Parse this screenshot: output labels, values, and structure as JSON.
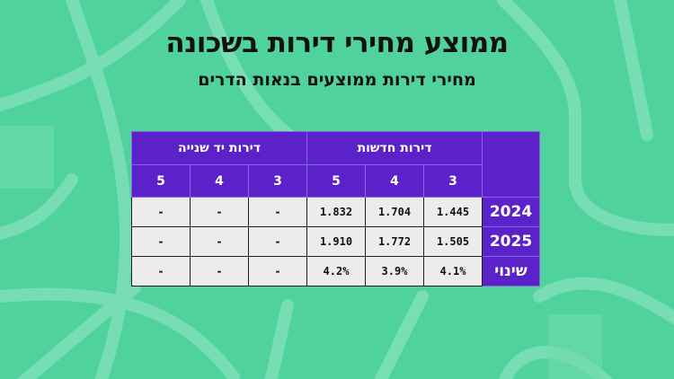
{
  "title": "ממוצע מחירי דירות בשכונה",
  "subtitle": "מחירי דירות ממוצעים בנאות הדרים",
  "table": {
    "groups": {
      "second_hand": "דירות יד שנייה",
      "new": "דירות חדשות"
    },
    "second_hand_rooms": [
      "5",
      "4",
      "3"
    ],
    "new_rooms": [
      "5",
      "4",
      "3"
    ],
    "rows": [
      {
        "label": "2024",
        "second_hand": [
          "-",
          "-",
          "-"
        ],
        "new": [
          "1.832",
          "1.704",
          "1.445"
        ]
      },
      {
        "label": "2025",
        "second_hand": [
          "-",
          "-",
          "-"
        ],
        "new": [
          "1.910",
          "1.772",
          "1.505"
        ]
      },
      {
        "label": "שינוי",
        "second_hand": [
          "-",
          "-",
          "-"
        ],
        "new": [
          "4.2%",
          "3.9%",
          "4.1%"
        ]
      }
    ]
  },
  "colors": {
    "background": "#4fd29c",
    "header": "#5a22c8",
    "cell": "#ececec"
  }
}
